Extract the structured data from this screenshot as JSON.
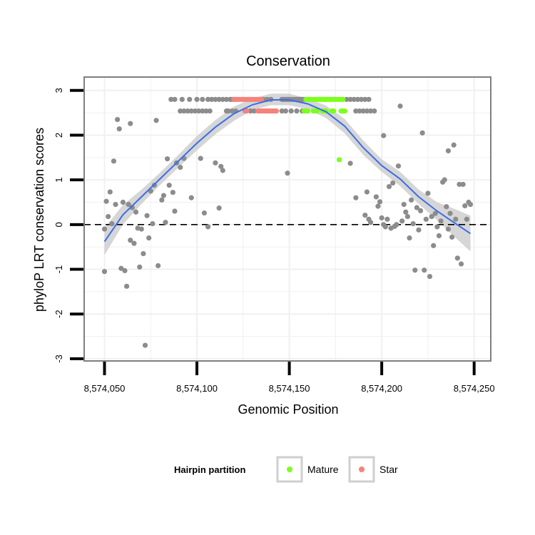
{
  "chart_data": {
    "type": "scatter",
    "title": "Conservation",
    "xlabel": "Genomic Position",
    "ylabel": "phyloP LRT conservation scores",
    "xlim": [
      8574039,
      8574259
    ],
    "ylim": [
      -3.05,
      3.3
    ],
    "x_ticks": [
      8574050,
      8574100,
      8574150,
      8574200,
      8574250
    ],
    "x_tick_labels": [
      "8,574,050",
      "8,574,100",
      "8,574,150",
      "8,574,200",
      "8,574,250"
    ],
    "y_ticks": [
      -3,
      -2,
      -1,
      0,
      1,
      2,
      3
    ],
    "y_tick_labels": [
      "-3",
      "-2",
      "-1",
      "0",
      "1",
      "2",
      "3"
    ],
    "reference_line": {
      "y": 0,
      "style": "dashed",
      "color": "#000000"
    },
    "colors": {
      "other": "#8c8c8c",
      "Mature": "#7cff1c",
      "Star": "#f4837a",
      "smooth": "#3a6ee8",
      "band": "#c8c8c8",
      "panel_border": "#7f7f7f",
      "grid": "#f0f0f0"
    },
    "legend": {
      "title": "Hairpin partition",
      "position": "bottom",
      "entries": [
        {
          "label": "Mature",
          "color": "#7cff1c"
        },
        {
          "label": "Star",
          "color": "#f4837a"
        }
      ]
    },
    "smooth": {
      "x": [
        8574050,
        8574060,
        8574070,
        8574080,
        8574090,
        8574100,
        8574110,
        8574120,
        8574130,
        8574140,
        8574150,
        8574160,
        8574170,
        8574180,
        8574190,
        8574200,
        8574210,
        8574220,
        8574230,
        8574240,
        8574248
      ],
      "y": [
        -0.38,
        0.22,
        0.62,
        1.02,
        1.42,
        1.82,
        2.18,
        2.48,
        2.68,
        2.79,
        2.79,
        2.7,
        2.52,
        2.2,
        1.72,
        1.32,
        1.02,
        0.62,
        0.3,
        0.02,
        -0.2
      ],
      "lower": [
        -0.68,
        0.0,
        0.46,
        0.88,
        1.28,
        1.66,
        2.02,
        2.32,
        2.56,
        2.67,
        2.67,
        2.58,
        2.38,
        2.04,
        1.56,
        1.18,
        0.86,
        0.46,
        0.1,
        -0.3,
        -0.6
      ],
      "upper": [
        -0.08,
        0.44,
        0.78,
        1.16,
        1.56,
        1.98,
        2.34,
        2.64,
        2.82,
        2.93,
        2.93,
        2.82,
        2.66,
        2.36,
        1.88,
        1.46,
        1.18,
        0.78,
        0.5,
        0.34,
        0.2
      ]
    },
    "points": {
      "other": [
        [
          8574050,
          -0.1
        ],
        [
          8574050,
          -1.05
        ],
        [
          8574051,
          0.52
        ],
        [
          8574052,
          0.18
        ],
        [
          8574053,
          0.73
        ],
        [
          8574054,
          0.02
        ],
        [
          8574055,
          1.42
        ],
        [
          8574056,
          0.45
        ],
        [
          8574057,
          2.35
        ],
        [
          8574058,
          2.14
        ],
        [
          8574059,
          -0.98
        ],
        [
          8574060,
          0.5
        ],
        [
          8574061,
          -1.03
        ],
        [
          8574062,
          -1.38
        ],
        [
          8574063,
          0.45
        ],
        [
          8574064,
          2.26
        ],
        [
          8574064,
          -0.35
        ],
        [
          8574065,
          0.38
        ],
        [
          8574066,
          -0.42
        ],
        [
          8574067,
          0.28
        ],
        [
          8574068,
          -0.08
        ],
        [
          8574069,
          -0.95
        ],
        [
          8574070,
          -0.1
        ],
        [
          8574071,
          -0.65
        ],
        [
          8574072,
          -2.7
        ],
        [
          8574073,
          0.2
        ],
        [
          8574074,
          -0.3
        ],
        [
          8574075,
          0.75
        ],
        [
          8574076,
          0.02
        ],
        [
          8574077,
          0.88
        ],
        [
          8574078,
          2.33
        ],
        [
          8574079,
          -0.92
        ],
        [
          8574081,
          0.55
        ],
        [
          8574082,
          0.65
        ],
        [
          8574083,
          0.05
        ],
        [
          8574084,
          1.47
        ],
        [
          8574085,
          0.88
        ],
        [
          8574087,
          0.72
        ],
        [
          8574088,
          0.3
        ],
        [
          8574089,
          1.38
        ],
        [
          8574091,
          1.28
        ],
        [
          8574093,
          1.48
        ],
        [
          8574097,
          0.6
        ],
        [
          8574102,
          1.48
        ],
        [
          8574104,
          0.26
        ],
        [
          8574106,
          -0.05
        ],
        [
          8574110,
          1.38
        ],
        [
          8574112,
          0.37
        ],
        [
          8574113,
          1.3
        ],
        [
          8574114,
          1.21
        ],
        [
          8574149,
          1.15
        ],
        [
          8574183,
          1.37
        ],
        [
          8574186,
          0.6
        ],
        [
          8574191,
          0.21
        ],
        [
          8574192,
          0.73
        ],
        [
          8574193,
          0.12
        ],
        [
          8574194,
          0.05
        ],
        [
          8574197,
          0.62
        ],
        [
          8574198,
          0.41
        ],
        [
          8574199,
          0.51
        ],
        [
          8574200,
          0.15
        ],
        [
          8574201,
          1.99
        ],
        [
          8574201,
          0.0
        ],
        [
          8574202,
          -0.05
        ],
        [
          8574203,
          0.12
        ],
        [
          8574204,
          0.85
        ],
        [
          8574205,
          -0.08
        ],
        [
          8574206,
          0.93
        ],
        [
          8574207,
          -0.04
        ],
        [
          8574208,
          0.0
        ],
        [
          8574209,
          1.31
        ],
        [
          8574210,
          2.65
        ],
        [
          8574211,
          0.08
        ],
        [
          8574212,
          0.45
        ],
        [
          8574213,
          0.28
        ],
        [
          8574214,
          0.18
        ],
        [
          8574215,
          -0.3
        ],
        [
          8574216,
          0.55
        ],
        [
          8574217,
          0.02
        ],
        [
          8574218,
          -1.02
        ],
        [
          8574219,
          0.38
        ],
        [
          8574220,
          -0.12
        ],
        [
          8574221,
          0.31
        ],
        [
          8574222,
          2.05
        ],
        [
          8574223,
          -1.02
        ],
        [
          8574224,
          0.12
        ],
        [
          8574225,
          0.7
        ],
        [
          8574226,
          -1.16
        ],
        [
          8574227,
          0.18
        ],
        [
          8574228,
          -0.47
        ],
        [
          8574229,
          0.25
        ],
        [
          8574230,
          -0.05
        ],
        [
          8574231,
          -0.25
        ],
        [
          8574232,
          0.08
        ],
        [
          8574233,
          0.95
        ],
        [
          8574234,
          1.0
        ],
        [
          8574235,
          0.4
        ],
        [
          8574236,
          1.65
        ],
        [
          8574236,
          -0.1
        ],
        [
          8574237,
          0.25
        ],
        [
          8574238,
          -0.28
        ],
        [
          8574239,
          1.78
        ],
        [
          8574240,
          0.12
        ],
        [
          8574241,
          -0.75
        ],
        [
          8574242,
          0.9
        ],
        [
          8574243,
          -0.88
        ],
        [
          8574244,
          0.9
        ],
        [
          8574245,
          0.42
        ],
        [
          8574246,
          0.12
        ],
        [
          8574247,
          0.5
        ],
        [
          8574248,
          0.45
        ]
      ],
      "top_row_x": [
        8574086,
        8574088,
        8574092,
        8574096,
        8574100,
        8574103,
        8574106,
        8574108,
        8574110,
        8574112,
        8574114,
        8574116,
        8574118,
        8574119,
        8574136,
        8574138,
        8574140,
        8574146,
        8574147,
        8574148,
        8574149,
        8574150,
        8574151,
        8574152,
        8574153,
        8574154,
        8574155,
        8574156,
        8574157,
        8574158,
        8574181,
        8574183,
        8574185,
        8574187,
        8574189,
        8574191,
        8574193
      ],
      "top_row_y": 2.8,
      "second_row_x": [
        8574091,
        8574093,
        8574095,
        8574097,
        8574099,
        8574101,
        8574103,
        8574105,
        8574107,
        8574116,
        8574117,
        8574119,
        8574121,
        8574129,
        8574131,
        8574146,
        8574148,
        8574151,
        8574154,
        8574157,
        8574186,
        8574188,
        8574190,
        8574192,
        8574194,
        8574196
      ],
      "second_row_y": 2.54,
      "mature": [
        [
          8574159,
          2.8
        ],
        [
          8574160,
          2.8
        ],
        [
          8574161,
          2.8
        ],
        [
          8574162,
          2.8
        ],
        [
          8574163,
          2.8
        ],
        [
          8574164,
          2.8
        ],
        [
          8574165,
          2.8
        ],
        [
          8574166,
          2.8
        ],
        [
          8574167,
          2.8
        ],
        [
          8574168,
          2.8
        ],
        [
          8574169,
          2.8
        ],
        [
          8574170,
          2.8
        ],
        [
          8574171,
          2.8
        ],
        [
          8574172,
          2.8
        ],
        [
          8574173,
          2.8
        ],
        [
          8574174,
          2.8
        ],
        [
          8574175,
          2.8
        ],
        [
          8574176,
          2.8
        ],
        [
          8574177,
          2.8
        ],
        [
          8574178,
          2.8
        ],
        [
          8574179,
          2.8
        ],
        [
          8574158,
          2.54
        ],
        [
          8574159,
          2.54
        ],
        [
          8574160,
          2.54
        ],
        [
          8574163,
          2.54
        ],
        [
          8574164,
          2.54
        ],
        [
          8574165,
          2.54
        ],
        [
          8574168,
          2.54
        ],
        [
          8574169,
          2.54
        ],
        [
          8574170,
          2.54
        ],
        [
          8574173,
          2.54
        ],
        [
          8574174,
          2.54
        ],
        [
          8574178,
          2.54
        ],
        [
          8574179,
          2.54
        ],
        [
          8574180,
          2.54
        ],
        [
          8574177,
          1.45
        ]
      ],
      "star": [
        [
          8574120,
          2.8
        ],
        [
          8574121,
          2.8
        ],
        [
          8574122,
          2.8
        ],
        [
          8574123,
          2.8
        ],
        [
          8574124,
          2.8
        ],
        [
          8574125,
          2.8
        ],
        [
          8574126,
          2.8
        ],
        [
          8574127,
          2.8
        ],
        [
          8574128,
          2.8
        ],
        [
          8574129,
          2.8
        ],
        [
          8574130,
          2.8
        ],
        [
          8574131,
          2.8
        ],
        [
          8574132,
          2.8
        ],
        [
          8574133,
          2.8
        ],
        [
          8574134,
          2.8
        ],
        [
          8574135,
          2.8
        ],
        [
          8574126,
          2.54
        ],
        [
          8574127,
          2.54
        ],
        [
          8574133,
          2.54
        ],
        [
          8574134,
          2.54
        ],
        [
          8574135,
          2.54
        ],
        [
          8574136,
          2.54
        ],
        [
          8574137,
          2.54
        ],
        [
          8574138,
          2.54
        ],
        [
          8574139,
          2.54
        ],
        [
          8574140,
          2.54
        ],
        [
          8574141,
          2.54
        ],
        [
          8574142,
          2.54
        ],
        [
          8574143,
          2.54
        ]
      ]
    }
  }
}
